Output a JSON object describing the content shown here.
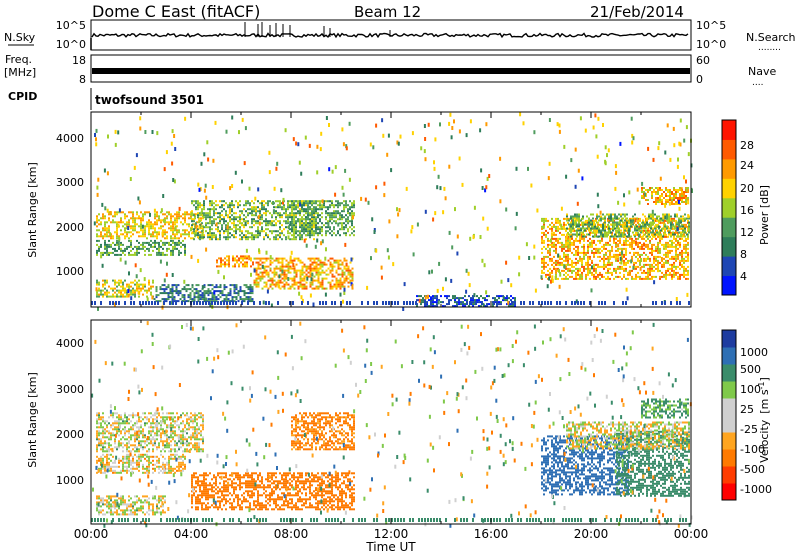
{
  "header": {
    "station": "Dome C East (fitACF)",
    "beam": "Beam 12",
    "date": "21/Feb/2014"
  },
  "strip_nsky": {
    "left_label": "N.Sky",
    "left_ticks": [
      "10^5",
      "10^0"
    ],
    "right_ticks": [
      "10^5",
      "10^0"
    ],
    "right_label": "N.Search",
    "right_label_dots": "........"
  },
  "strip_freq": {
    "left_label_1": "Freq.",
    "left_label_2": "[MHz]",
    "left_ticks": [
      "18",
      "8"
    ],
    "right_ticks": [
      "60",
      "0"
    ],
    "right_label": "Nave",
    "right_label_dots": "...."
  },
  "strip_cpid": {
    "label": "CPID",
    "program": "twofsound 3501"
  },
  "panels": {
    "power": {
      "ylabel": "Slant Range [km]",
      "yticks": [
        "4000",
        "3000",
        "2000",
        "1000"
      ],
      "colorbar_label": "Power [dB]",
      "colorbar_ticks": [
        "28",
        "24",
        "20",
        "16",
        "12",
        "8",
        "4"
      ],
      "colors": [
        "#0014ff",
        "#1e46b4",
        "#2e7d5a",
        "#4f9c5e",
        "#9fcf2a",
        "#ffd200",
        "#ff9a00",
        "#ff5a00",
        "#ff1400"
      ]
    },
    "velocity": {
      "ylabel": "Slant Range [km]",
      "yticks": [
        "4000",
        "3000",
        "2000",
        "1000"
      ],
      "colorbar_label_main": "Velocity",
      "colorbar_label_units": "[m s",
      "colorbar_label_exp": "-1",
      "colorbar_label_close": "]",
      "colorbar_ticks": [
        "1000",
        "500",
        "100",
        "25",
        "-25",
        "-100",
        "-500",
        "-1000"
      ],
      "colors": [
        "#1e3ca0",
        "#2e6fb4",
        "#3a8c6a",
        "#7fc94a",
        "#d0d0d0",
        "#d0d0d0",
        "#ffa520",
        "#ff7a00",
        "#ff3c00",
        "#ff0000"
      ]
    }
  },
  "xaxis": {
    "ticks": [
      "00:00",
      "04:00",
      "08:00",
      "12:00",
      "16:00",
      "20:00",
      "00:00"
    ],
    "label": "Time UT"
  },
  "chart_data": {
    "type": "heatmap",
    "title": "Dome C East (fitACF)",
    "x_unit": "hours UT",
    "x_range": [
      0,
      24
    ],
    "y_range_km": [
      180,
      4600
    ],
    "power_blobs": [
      {
        "t0": 0.2,
        "t1": 4.5,
        "r0": 1750,
        "r1": 2350,
        "v": 22
      },
      {
        "t0": 0.2,
        "t1": 3.8,
        "r0": 1350,
        "r1": 1700,
        "v": 14
      },
      {
        "t0": 0.2,
        "t1": 2.5,
        "r0": 400,
        "r1": 800,
        "v": 20
      },
      {
        "t0": 2.5,
        "t1": 6.5,
        "r0": 300,
        "r1": 700,
        "v": 10
      },
      {
        "t0": 5.0,
        "t1": 6.5,
        "r0": 1100,
        "r1": 1350,
        "v": 26
      },
      {
        "t0": 6.5,
        "t1": 10.5,
        "r0": 600,
        "r1": 1300,
        "v": 24
      },
      {
        "t0": 4.0,
        "t1": 9.0,
        "r0": 1700,
        "r1": 2600,
        "v": 16
      },
      {
        "t0": 8.0,
        "t1": 10.5,
        "r0": 1800,
        "r1": 2600,
        "v": 14
      },
      {
        "t0": 18.0,
        "t1": 23.9,
        "r0": 800,
        "r1": 2200,
        "v": 24
      },
      {
        "t0": 19.0,
        "t1": 23.9,
        "r0": 1800,
        "r1": 2300,
        "v": 16
      },
      {
        "t0": 22.0,
        "t1": 23.9,
        "r0": 2500,
        "r1": 2900,
        "v": 24
      },
      {
        "t0": 13.0,
        "t1": 17.0,
        "r0": 200,
        "r1": 450,
        "v": 6
      }
    ],
    "velocity_blobs": [
      {
        "t0": 0.2,
        "t1": 4.5,
        "r0": 1750,
        "r1": 2600,
        "v": 10
      },
      {
        "t0": 0.2,
        "t1": 3.8,
        "r0": 1300,
        "r1": 1700,
        "v": -20
      },
      {
        "t0": 0.2,
        "t1": 3.0,
        "r0": 400,
        "r1": 800,
        "v": 5
      },
      {
        "t0": 4.0,
        "t1": 10.5,
        "r0": 500,
        "r1": 1300,
        "v": -400
      },
      {
        "t0": 8.0,
        "t1": 10.5,
        "r0": 1800,
        "r1": 2600,
        "v": -150
      },
      {
        "t0": 18.0,
        "t1": 21.5,
        "r0": 800,
        "r1": 2100,
        "v": 900
      },
      {
        "t0": 21.0,
        "t1": 23.9,
        "r0": 800,
        "r1": 2200,
        "v": 200
      },
      {
        "t0": 19.0,
        "t1": 23.9,
        "r0": 1800,
        "r1": 2400,
        "v": 0
      },
      {
        "t0": 22.0,
        "t1": 23.9,
        "r0": 2500,
        "r1": 2900,
        "v": 120
      }
    ]
  }
}
